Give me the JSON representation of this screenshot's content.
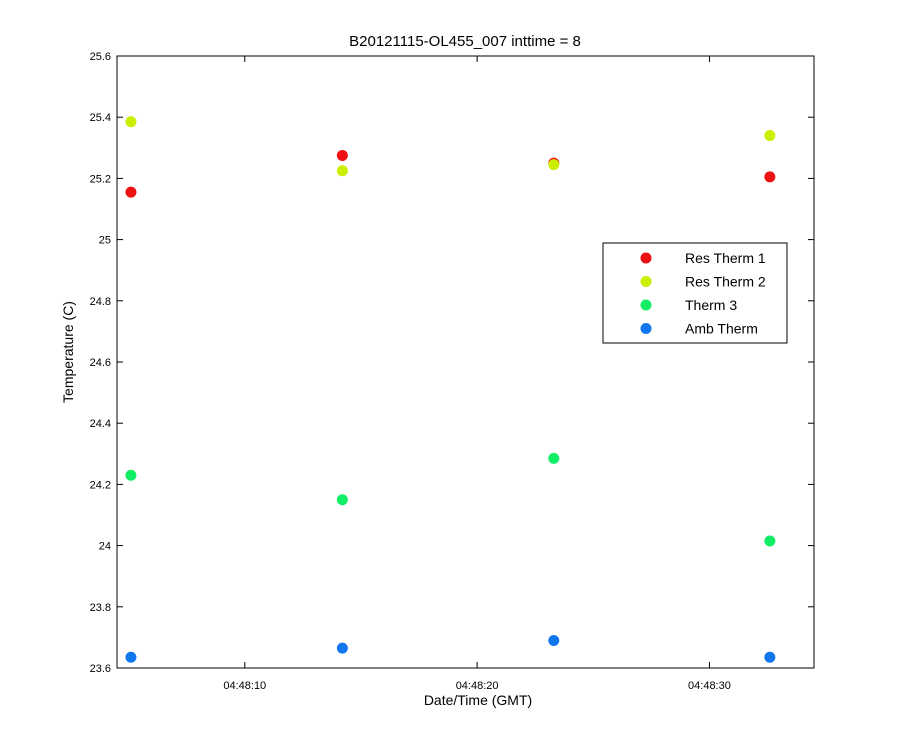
{
  "chart_data": {
    "type": "scatter",
    "title": "B20121115-OL455_007 inttime = 8",
    "xlabel": "Date/Time (GMT)",
    "ylabel": "Temperature (C)",
    "x_unit": "seconds past 04:48:00 GMT",
    "xlim": [
      4.5,
      34.5
    ],
    "ylim": [
      23.6,
      25.6
    ],
    "x_ticks": [
      10,
      20,
      30
    ],
    "x_tick_labels": [
      "04:48:10",
      "04:48:20",
      "04:48:30"
    ],
    "y_ticks": [
      23.6,
      23.8,
      24,
      24.2,
      24.4,
      24.6,
      24.8,
      25,
      25.2,
      25.4,
      25.6
    ],
    "y_tick_labels": [
      "23.6",
      "23.8",
      "24",
      "24.2",
      "24.4",
      "24.6",
      "24.8",
      "25",
      "25.2",
      "25.4",
      "25.6"
    ],
    "grid": false,
    "legend_position": "right",
    "x": [
      5.1,
      14.2,
      23.3,
      32.6
    ],
    "series": [
      {
        "name": "Res Therm 1",
        "color": "#ee1111",
        "values": [
          25.155,
          25.275,
          25.25,
          25.205
        ]
      },
      {
        "name": "Res Therm 2",
        "color": "#ccee00",
        "values": [
          25.385,
          25.225,
          25.245,
          25.34
        ]
      },
      {
        "name": "Therm 3",
        "color": "#11ee66",
        "values": [
          24.23,
          24.15,
          24.285,
          24.015
        ]
      },
      {
        "name": "Amb Therm",
        "color": "#1177ee",
        "values": [
          23.635,
          23.665,
          23.69,
          23.635
        ]
      }
    ]
  }
}
